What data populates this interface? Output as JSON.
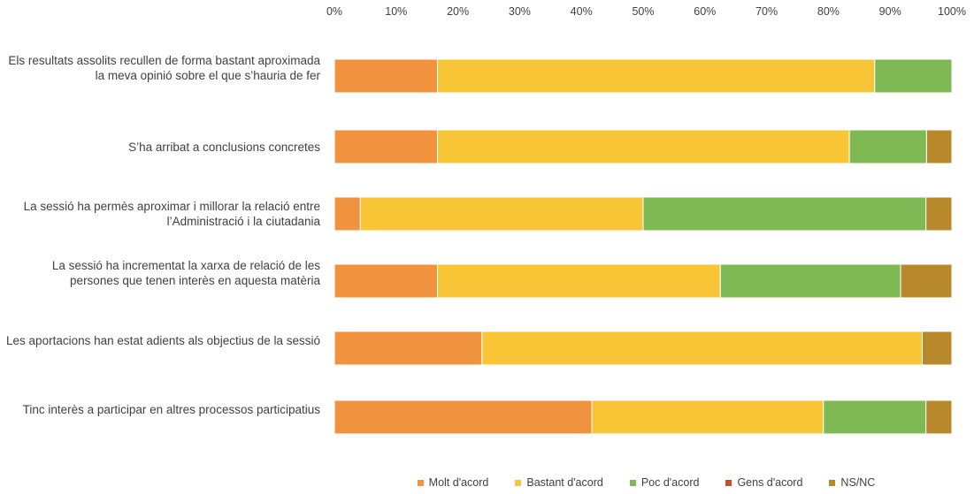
{
  "chart_data": {
    "type": "bar",
    "orientation": "horizontal",
    "stacked": "percent",
    "title": "",
    "xlabel": "",
    "ylabel": "",
    "xlim": [
      0,
      100
    ],
    "x_ticks": [
      "0%",
      "10%",
      "20%",
      "30%",
      "40%",
      "50%",
      "60%",
      "70%",
      "80%",
      "90%",
      "100%"
    ],
    "x_axis_position": "top",
    "grid": false,
    "legend_position": "bottom",
    "categories": [
      "Els resultats assolits recullen de forma bastant aproximada la meva opinió sobre el que s’hauria de fer",
      "S’ha arribat a conclusions concretes",
      "La sessió ha permès aproximar i millorar la relació entre l’Administració i la ciutadania",
      "La sessió ha incrementat la xarxa de relació de les persones que tenen interès en aquesta matèria",
      "Les aportacions han estat adients als objectius de la sessió",
      "Tinc interès a participar en altres processos participatius"
    ],
    "series": [
      {
        "name": "Molt d'acord",
        "color": "#F0923E",
        "values": [
          16.7,
          16.7,
          4.2,
          16.7,
          23.9,
          41.7
        ]
      },
      {
        "name": "Bastant d'acord",
        "color": "#F7C535",
        "values": [
          70.8,
          66.7,
          45.8,
          45.8,
          71.3,
          37.5
        ]
      },
      {
        "name": "Poc d'acord",
        "color": "#7FB954",
        "values": [
          12.5,
          12.5,
          45.8,
          29.2,
          0,
          16.6
        ]
      },
      {
        "name": "Gens d'acord",
        "color": "#C8502F",
        "values": [
          0,
          0,
          0,
          0,
          0,
          0
        ]
      },
      {
        "name": "NS/NC",
        "color": "#B8892A",
        "values": [
          0,
          4.1,
          4.2,
          8.3,
          4.8,
          4.2
        ]
      }
    ]
  }
}
